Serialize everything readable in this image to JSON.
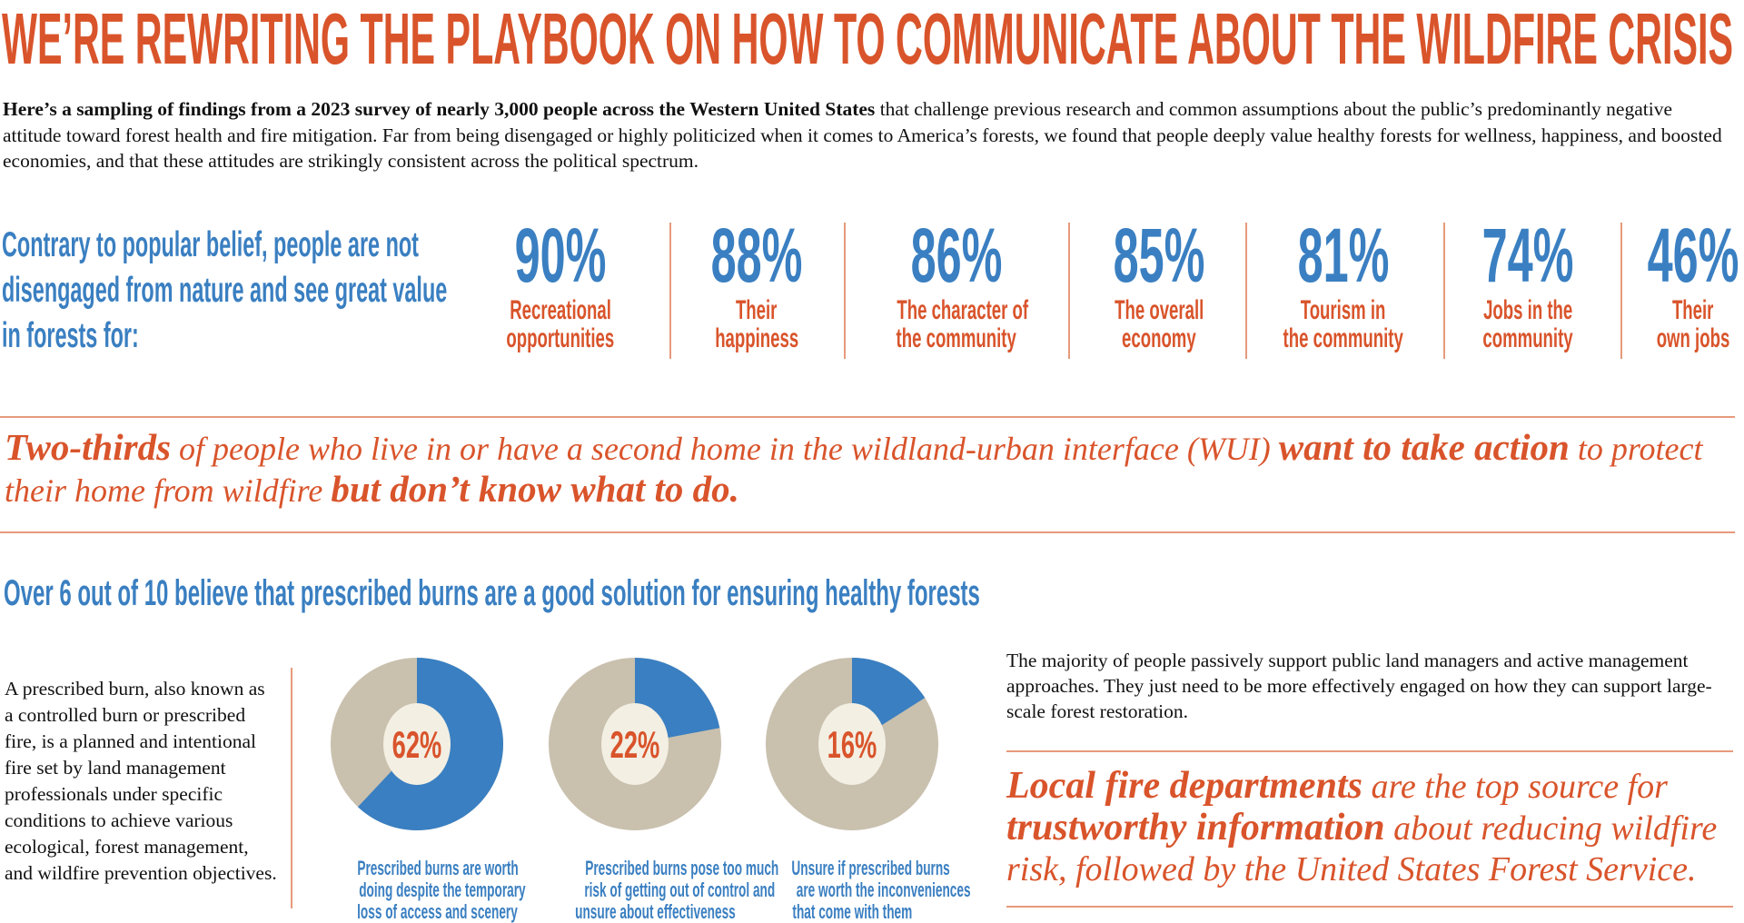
{
  "title": "WE’RE REWRITING THE PLAYBOOK ON HOW TO COMMUNICATE ABOUT THE WILDFIRE CRISIS",
  "intro": {
    "bold": "Here’s a sampling of findings from a 2023 survey of nearly 3,000 people across the Western United States",
    "rest": " that challenge previous research and common assumptions about the public’s predominantly negative attitude toward forest health and fire mitigation. Far from being disengaged or highly politicized when it comes to America’s forests, we found that people deeply value healthy forests for wellness, happiness, and boosted economies, and that these attitudes are strikingly consistent across the political spectrum."
  },
  "lead": {
    "lines": [
      "Contrary to popular belief, people are not",
      "disengaged from nature and see great value",
      "in forests for:"
    ]
  },
  "stats": [
    {
      "pct": "90%",
      "label1": "Recreational",
      "label2": "opportunities"
    },
    {
      "pct": "88%",
      "label1": "Their",
      "label2": "happiness"
    },
    {
      "pct": "86%",
      "label1": "The character of",
      "label2": "the community"
    },
    {
      "pct": "85%",
      "label1": "The overall",
      "label2": "economy"
    },
    {
      "pct": "81%",
      "label1": "Tourism in",
      "label2": "the community"
    },
    {
      "pct": "74%",
      "label1": "Jobs in the",
      "label2": "community"
    },
    {
      "pct": "46%",
      "label1": "Their",
      "label2": "own jobs"
    }
  ],
  "two_thirds": {
    "b1": "Two-thirds",
    "t1": " of people who live in or have a second home in the wildland-urban interface (WUI) ",
    "b2": "want to take action",
    "t2": " to protect their home from wildfire ",
    "b3": "but don’t know what to do."
  },
  "burn_heading": "Over 6 out of 10 believe that prescribed burns are a good solution for ensuring healthy forests",
  "burn_definition": "A prescribed burn, also known as a controlled burn or prescribed fire, is a planned and intentional fire set by land management professionals under specific conditions to achieve various ecological, forest management, and wildfire prevention objectives.",
  "chart_data": {
    "type": "pie",
    "variant": "donut",
    "colors": {
      "value": "#3a7fc1",
      "remainder": "#c9c0ae",
      "center": "#f3efe3",
      "label": "#d9542b"
    },
    "items": [
      {
        "value": 62,
        "label": "62%",
        "caption": [
          "Prescribed burns are worth",
          "doing despite the temporary",
          "loss of access and scenery"
        ]
      },
      {
        "value": 22,
        "label": "22%",
        "caption": [
          "Prescribed burns pose too much",
          "risk of getting out of control and",
          "unsure about effectiveness"
        ]
      },
      {
        "value": 16,
        "label": "16%",
        "caption": [
          "Unsure if prescribed burns",
          "are worth the inconveniences",
          "that come with them"
        ]
      }
    ]
  },
  "passive": "The majority of people passively support public land managers and active management approaches. They just need to be more effectively engaged on how they can support large-scale forest restoration.",
  "local_fire": {
    "b1": "Local fire departments",
    "t1": " are the top source for ",
    "b2": "trustworthy information",
    "t2": " about reducing wildfire risk, followed by the United States Forest Service."
  },
  "colors": {
    "orange": "#d9542b",
    "blue": "#3a7fc1",
    "rule": "#e79a7c"
  }
}
